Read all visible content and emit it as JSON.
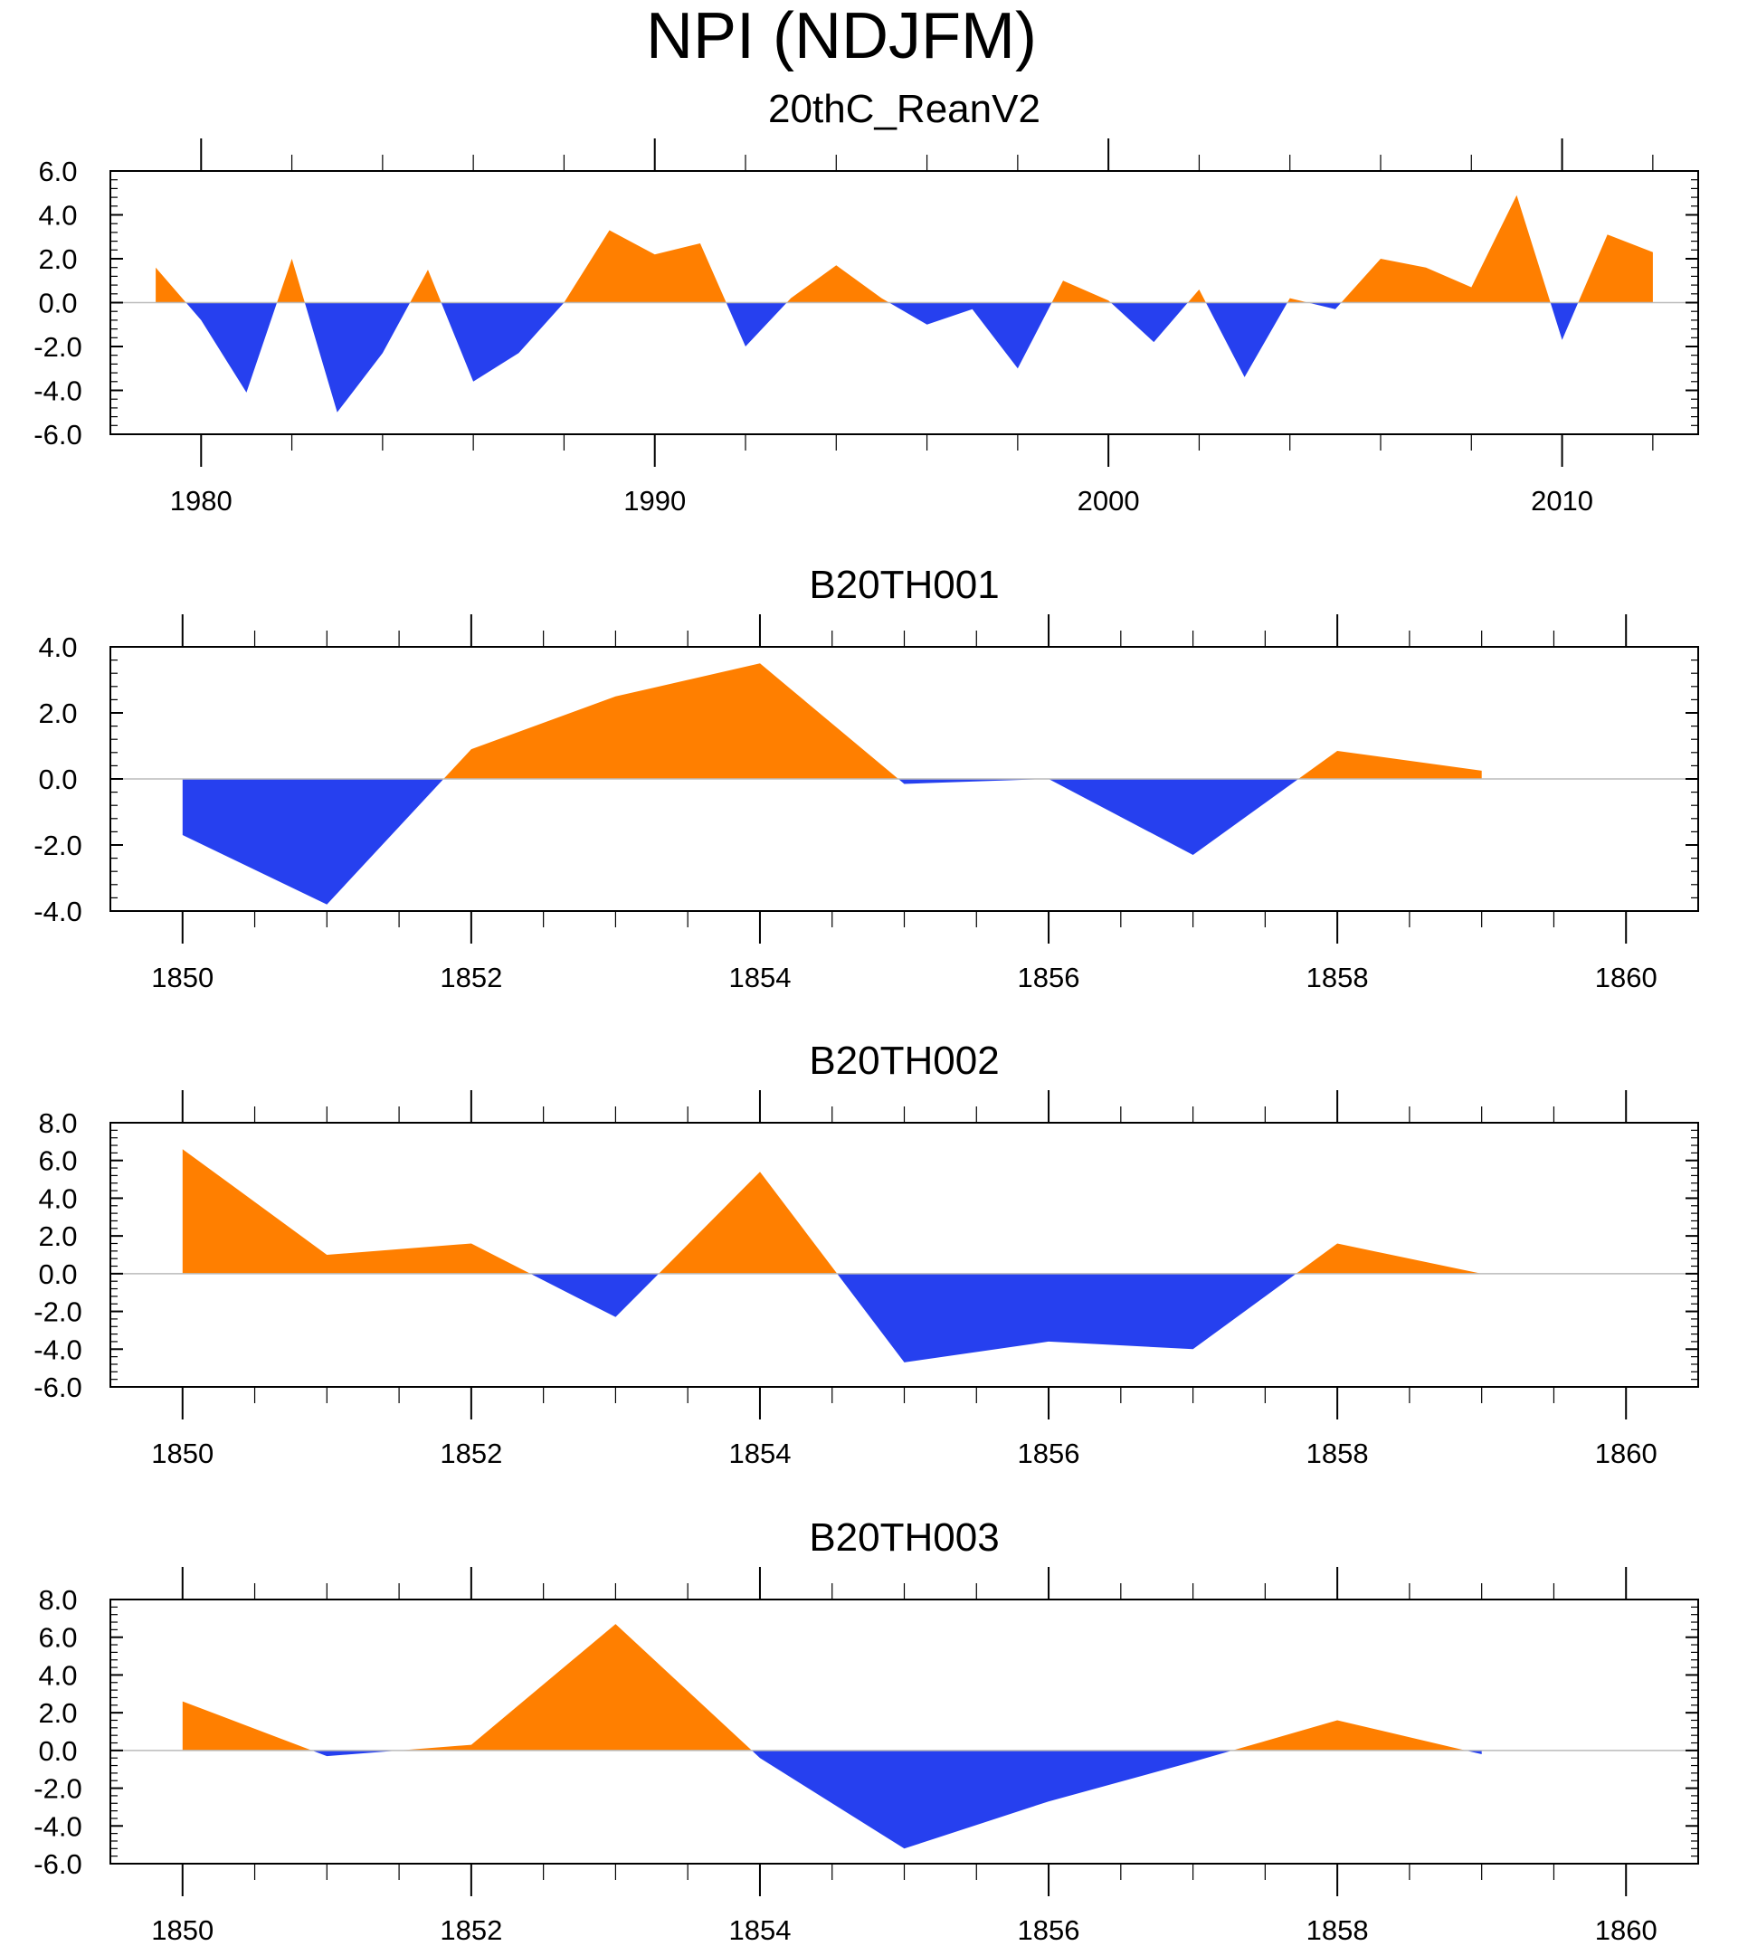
{
  "figure": {
    "title": "NPI (NDJFM)"
  },
  "colors": {
    "positive": "#ff7f00",
    "negative": "#2640ef",
    "frame": "#000000",
    "zero_line": "#bbbbbb"
  },
  "chart_data": [
    {
      "type": "area",
      "title": "20thC_ReanV2",
      "xlabel": "",
      "ylabel": "",
      "xlim": [
        1978,
        2013
      ],
      "ylim": [
        -6,
        6
      ],
      "x_ticks": [
        1980,
        1990,
        2000,
        2010
      ],
      "x_tick_labels": [
        "1980",
        "1990",
        "2000",
        "2010"
      ],
      "y_ticks": [
        -6,
        -4,
        -2,
        0,
        2,
        4,
        6
      ],
      "y_tick_labels": [
        "-6.0",
        "-4.0",
        "-2.0",
        "0.0",
        "2.0",
        "4.0",
        "6.0"
      ],
      "x": [
        1979,
        1980,
        1981,
        1982,
        1983,
        1984,
        1985,
        1986,
        1987,
        1988,
        1989,
        1990,
        1991,
        1992,
        1993,
        1994,
        1995,
        1996,
        1997,
        1998,
        1999,
        2000,
        2001,
        2002,
        2003,
        2004,
        2005,
        2006,
        2007,
        2008,
        2009,
        2010,
        2011,
        2012
      ],
      "values": [
        1.6,
        -0.8,
        -4.1,
        2.0,
        -5.0,
        -2.3,
        1.5,
        -3.6,
        -2.3,
        0.0,
        3.3,
        2.2,
        2.7,
        -2.0,
        0.2,
        1.7,
        0.2,
        -1.0,
        -0.3,
        -3.0,
        1.0,
        0.1,
        -1.8,
        0.6,
        -3.4,
        0.2,
        -0.3,
        2.0,
        1.6,
        0.7,
        4.9,
        -1.7,
        3.1,
        2.3
      ]
    },
    {
      "type": "area",
      "title": "B20TH001",
      "xlabel": "",
      "ylabel": "",
      "xlim": [
        1849.5,
        1860.5
      ],
      "ylim": [
        -4,
        4
      ],
      "x_ticks": [
        1850,
        1852,
        1854,
        1856,
        1858,
        1860
      ],
      "x_tick_labels": [
        "1850",
        "1852",
        "1854",
        "1856",
        "1858",
        "1860"
      ],
      "y_ticks": [
        -4,
        -2,
        0,
        2,
        4
      ],
      "y_tick_labels": [
        "-4.0",
        "-2.0",
        "0.0",
        "2.0",
        "4.0"
      ],
      "x": [
        1850,
        1851,
        1852,
        1853,
        1854,
        1855,
        1856,
        1857,
        1858,
        1859
      ],
      "values": [
        -1.7,
        -3.8,
        0.9,
        2.5,
        3.5,
        -0.15,
        0.0,
        -2.3,
        0.85,
        0.25
      ]
    },
    {
      "type": "area",
      "title": "B20TH002",
      "xlabel": "",
      "ylabel": "",
      "xlim": [
        1849.5,
        1860.5
      ],
      "ylim": [
        -6,
        8
      ],
      "x_ticks": [
        1850,
        1852,
        1854,
        1856,
        1858,
        1860
      ],
      "x_tick_labels": [
        "1850",
        "1852",
        "1854",
        "1856",
        "1858",
        "1860"
      ],
      "y_ticks": [
        -6,
        -4,
        -2,
        0,
        2,
        4,
        6,
        8
      ],
      "y_tick_labels": [
        "-6.0",
        "-4.0",
        "-2.0",
        "0.0",
        "2.0",
        "4.0",
        "6.0",
        "8.0"
      ],
      "x": [
        1850,
        1851,
        1852,
        1853,
        1854,
        1855,
        1856,
        1857,
        1858,
        1859
      ],
      "values": [
        6.6,
        1.0,
        1.6,
        -2.3,
        5.4,
        -4.7,
        -3.6,
        -4.0,
        1.6,
        0.0
      ]
    },
    {
      "type": "area",
      "title": "B20TH003",
      "xlabel": "",
      "ylabel": "",
      "xlim": [
        1849.5,
        1860.5
      ],
      "ylim": [
        -6,
        8
      ],
      "x_ticks": [
        1850,
        1852,
        1854,
        1856,
        1858,
        1860
      ],
      "x_tick_labels": [
        "1850",
        "1852",
        "1854",
        "1856",
        "1858",
        "1860"
      ],
      "y_ticks": [
        -6,
        -4,
        -2,
        0,
        2,
        4,
        6,
        8
      ],
      "y_tick_labels": [
        "-6.0",
        "-4.0",
        "-2.0",
        "0.0",
        "2.0",
        "4.0",
        "6.0",
        "8.0"
      ],
      "x": [
        1850,
        1851,
        1852,
        1853,
        1854,
        1855,
        1856,
        1857,
        1858,
        1859
      ],
      "values": [
        2.6,
        -0.3,
        0.3,
        6.7,
        -0.4,
        -5.2,
        -2.7,
        -0.6,
        1.6,
        -0.2
      ]
    }
  ]
}
